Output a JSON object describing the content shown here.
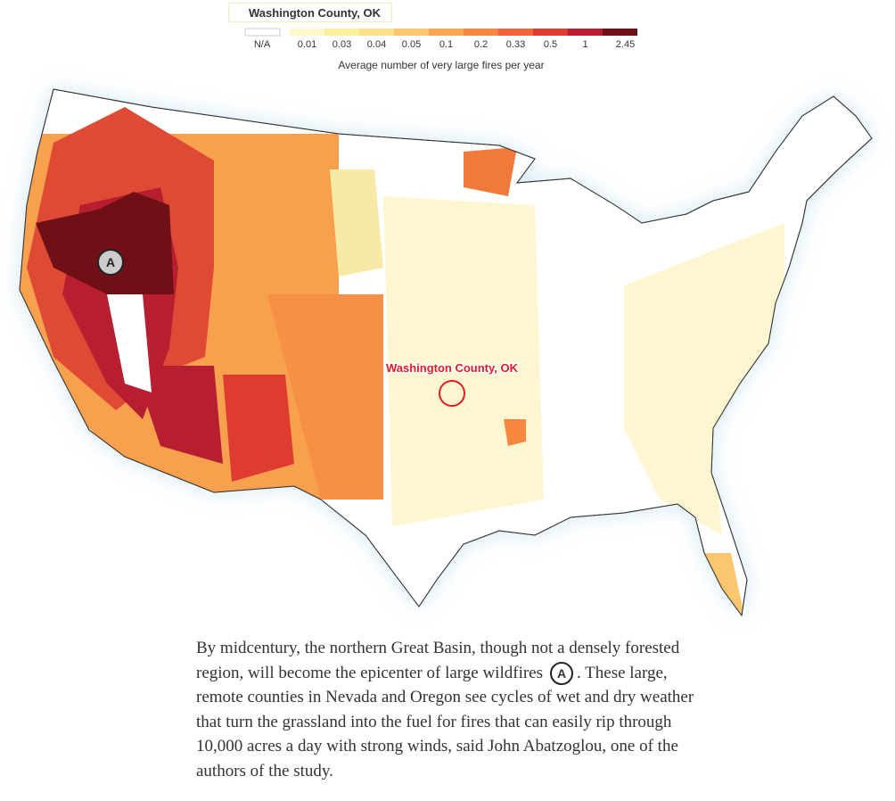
{
  "search_box": {
    "text": "Washington County, OK"
  },
  "legend": {
    "na_label": "N/A",
    "na_color": "#ffffff",
    "colors": [
      "#fdf8cc",
      "#fbf19b",
      "#fbe089",
      "#fbc66e",
      "#f9a653",
      "#f78740",
      "#f0653a",
      "#de3b32",
      "#b71e30",
      "#6e1016"
    ],
    "labels": [
      "0.01",
      "0.03",
      "0.04",
      "0.05",
      "0.1",
      "0.2",
      "0.33",
      "0.5",
      "1",
      "2.45"
    ],
    "caption": "Average number of very large fires per year"
  },
  "map": {
    "highlight_label": "Washington County, OK",
    "marker": "A"
  },
  "paragraph": {
    "before": "By midcentury, the northern Great Basin, though not a densely forested region, will become the epicenter of large wildfires",
    "marker": "A",
    "after": ". These large, remote counties in Nevada and Oregon see cycles of wet and dry weather that turn the grassland into the fuel for fires that can easily rip through 10,000 acres a day with strong winds, said John Abatzoglou, one of the authors of the study."
  }
}
